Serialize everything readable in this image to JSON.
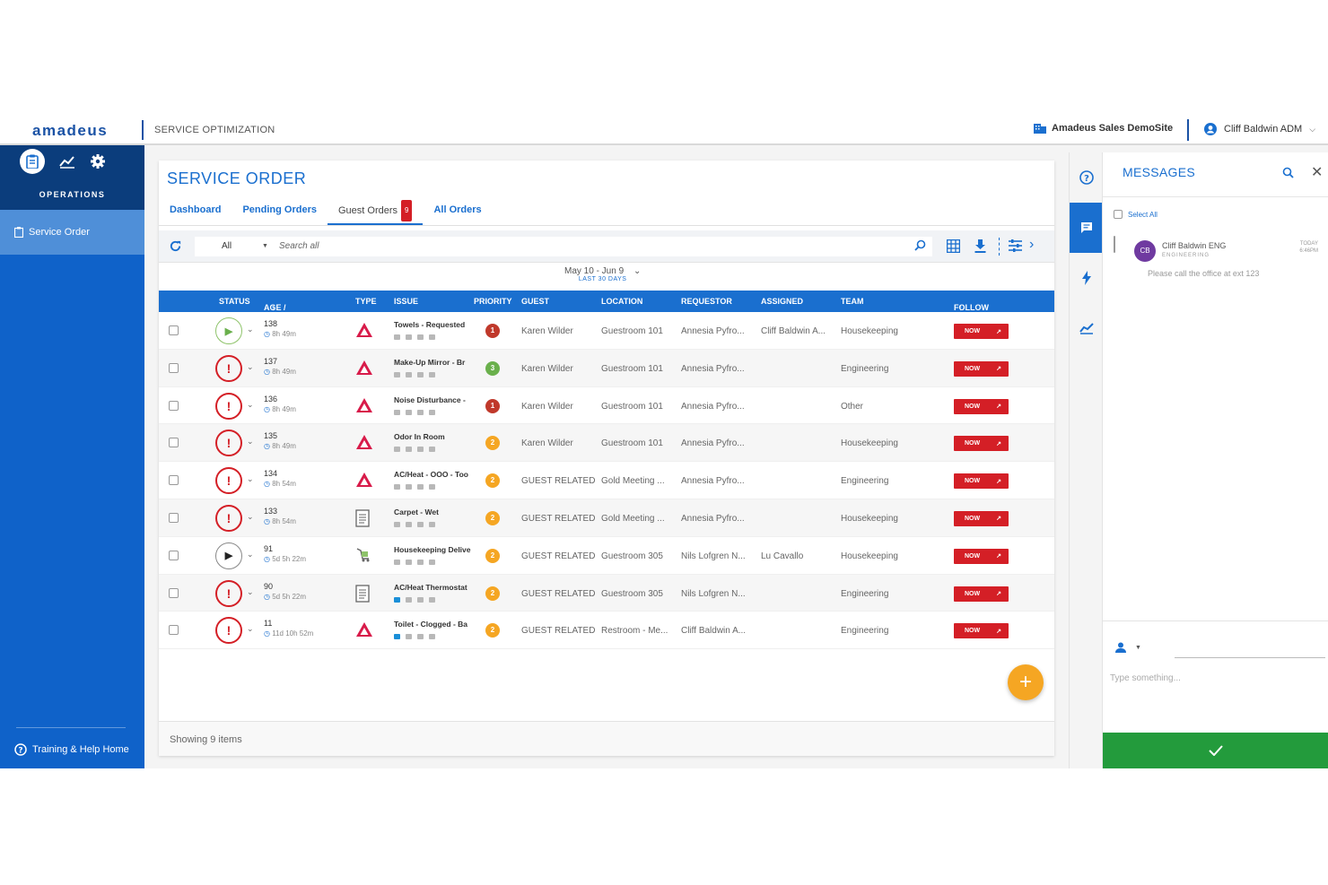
{
  "header": {
    "logo": "amadeus",
    "app_name": "SERVICE OPTIMIZATION",
    "site": "Amadeus Sales DemoSite",
    "user": "Cliff Baldwin ADM"
  },
  "sidebar": {
    "section": "OPERATIONS",
    "items": [
      {
        "label": "Service Order",
        "icon": "clipboard-icon"
      }
    ],
    "footer": "Training & Help Home"
  },
  "page": {
    "title": "SERVICE ORDER",
    "tabs": [
      {
        "label": "Dashboard"
      },
      {
        "label": "Pending Orders"
      },
      {
        "label": "Guest Orders",
        "badge": "9",
        "active": true
      },
      {
        "label": "All Orders"
      }
    ],
    "filter": "All",
    "search_placeholder": "Search all",
    "date_range": "May 10 - Jun 9",
    "date_range_sub": "LAST 30 DAYS",
    "footer": "Showing 9 items"
  },
  "table": {
    "columns": [
      "STATUS",
      "AGE / ORDE...",
      "TYPE",
      "ISSUE",
      "PRIORITY",
      "GUEST",
      "LOCATION",
      "REQUESTOR",
      "ASSIGNED",
      "TEAM",
      "FOLLOW UP"
    ],
    "rows": [
      {
        "status": "play",
        "order": "138",
        "age": "8h 49m",
        "type": "triangle",
        "issue": "Towels - Requested",
        "priority": "1",
        "guest": "Karen Wilder",
        "location": "Guestroom 101",
        "requestor": "Annesia Pyfro...",
        "assigned": "Cliff Baldwin A...",
        "team": "Housekeeping",
        "follow": "NOW"
      },
      {
        "status": "alert",
        "order": "137",
        "age": "8h 49m",
        "type": "triangle",
        "issue": "Make-Up Mirror - Br",
        "priority": "3",
        "guest": "Karen Wilder",
        "location": "Guestroom 101",
        "requestor": "Annesia Pyfro...",
        "assigned": "",
        "team": "Engineering",
        "follow": "NOW"
      },
      {
        "status": "alert",
        "order": "136",
        "age": "8h 49m",
        "type": "triangle",
        "issue": "Noise Disturbance -",
        "priority": "1",
        "guest": "Karen Wilder",
        "location": "Guestroom 101",
        "requestor": "Annesia Pyfro...",
        "assigned": "",
        "team": "Other",
        "follow": "NOW"
      },
      {
        "status": "alert",
        "order": "135",
        "age": "8h 49m",
        "type": "triangle",
        "issue": "Odor In Room",
        "priority": "2",
        "guest": "Karen Wilder",
        "location": "Guestroom 101",
        "requestor": "Annesia Pyfro...",
        "assigned": "",
        "team": "Housekeeping",
        "follow": "NOW"
      },
      {
        "status": "alert",
        "order": "134",
        "age": "8h 54m",
        "type": "triangle",
        "issue": "AC/Heat - OOO - Too",
        "priority": "2",
        "guest": "GUEST RELATED",
        "location": "Gold Meeting ...",
        "requestor": "Annesia Pyfro...",
        "assigned": "",
        "team": "Engineering",
        "follow": "NOW"
      },
      {
        "status": "alert",
        "order": "133",
        "age": "8h 54m",
        "type": "doc",
        "issue": "Carpet - Wet",
        "priority": "2",
        "guest": "GUEST RELATED",
        "location": "Gold Meeting ...",
        "requestor": "Annesia Pyfro...",
        "assigned": "",
        "team": "Housekeeping",
        "follow": "NOW"
      },
      {
        "status": "deliver",
        "order": "91",
        "age": "5d 5h 22m",
        "type": "cart",
        "issue": "Housekeeping Delive",
        "priority": "2",
        "guest": "GUEST RELATED",
        "location": "Guestroom 305",
        "requestor": "Nils Lofgren N...",
        "assigned": "Lu Cavallo",
        "team": "Housekeeping",
        "follow": "NOW"
      },
      {
        "status": "alert",
        "order": "90",
        "age": "5d 5h 22m",
        "type": "doc",
        "issue": "AC/Heat Thermostat",
        "priority": "2",
        "guest": "GUEST RELATED",
        "location": "Guestroom 305",
        "requestor": "Nils Lofgren N...",
        "assigned": "",
        "team": "Engineering",
        "follow": "NOW"
      },
      {
        "status": "alert",
        "order": "11",
        "age": "11d 10h 52m",
        "type": "triangle",
        "issue": "Toilet - Clogged - Ba",
        "priority": "2",
        "guest": "GUEST RELATED",
        "location": "Restroom - Me...",
        "requestor": "Cliff Baldwin A...",
        "assigned": "",
        "team": "Engineering",
        "follow": "NOW"
      }
    ]
  },
  "priority_colors": {
    "1": "#c0392b",
    "2": "#f5a623",
    "3": "#6ab04c"
  },
  "messages": {
    "title": "MESSAGES",
    "select_all": "Select All",
    "items": [
      {
        "initials": "CB",
        "sender": "Cliff Baldwin ENG",
        "team": "ENGINEERING",
        "time": "TODAY",
        "time2": "6:46PM",
        "text": "Please call the office at ext 123"
      }
    ],
    "compose_placeholder": "Type something..."
  }
}
